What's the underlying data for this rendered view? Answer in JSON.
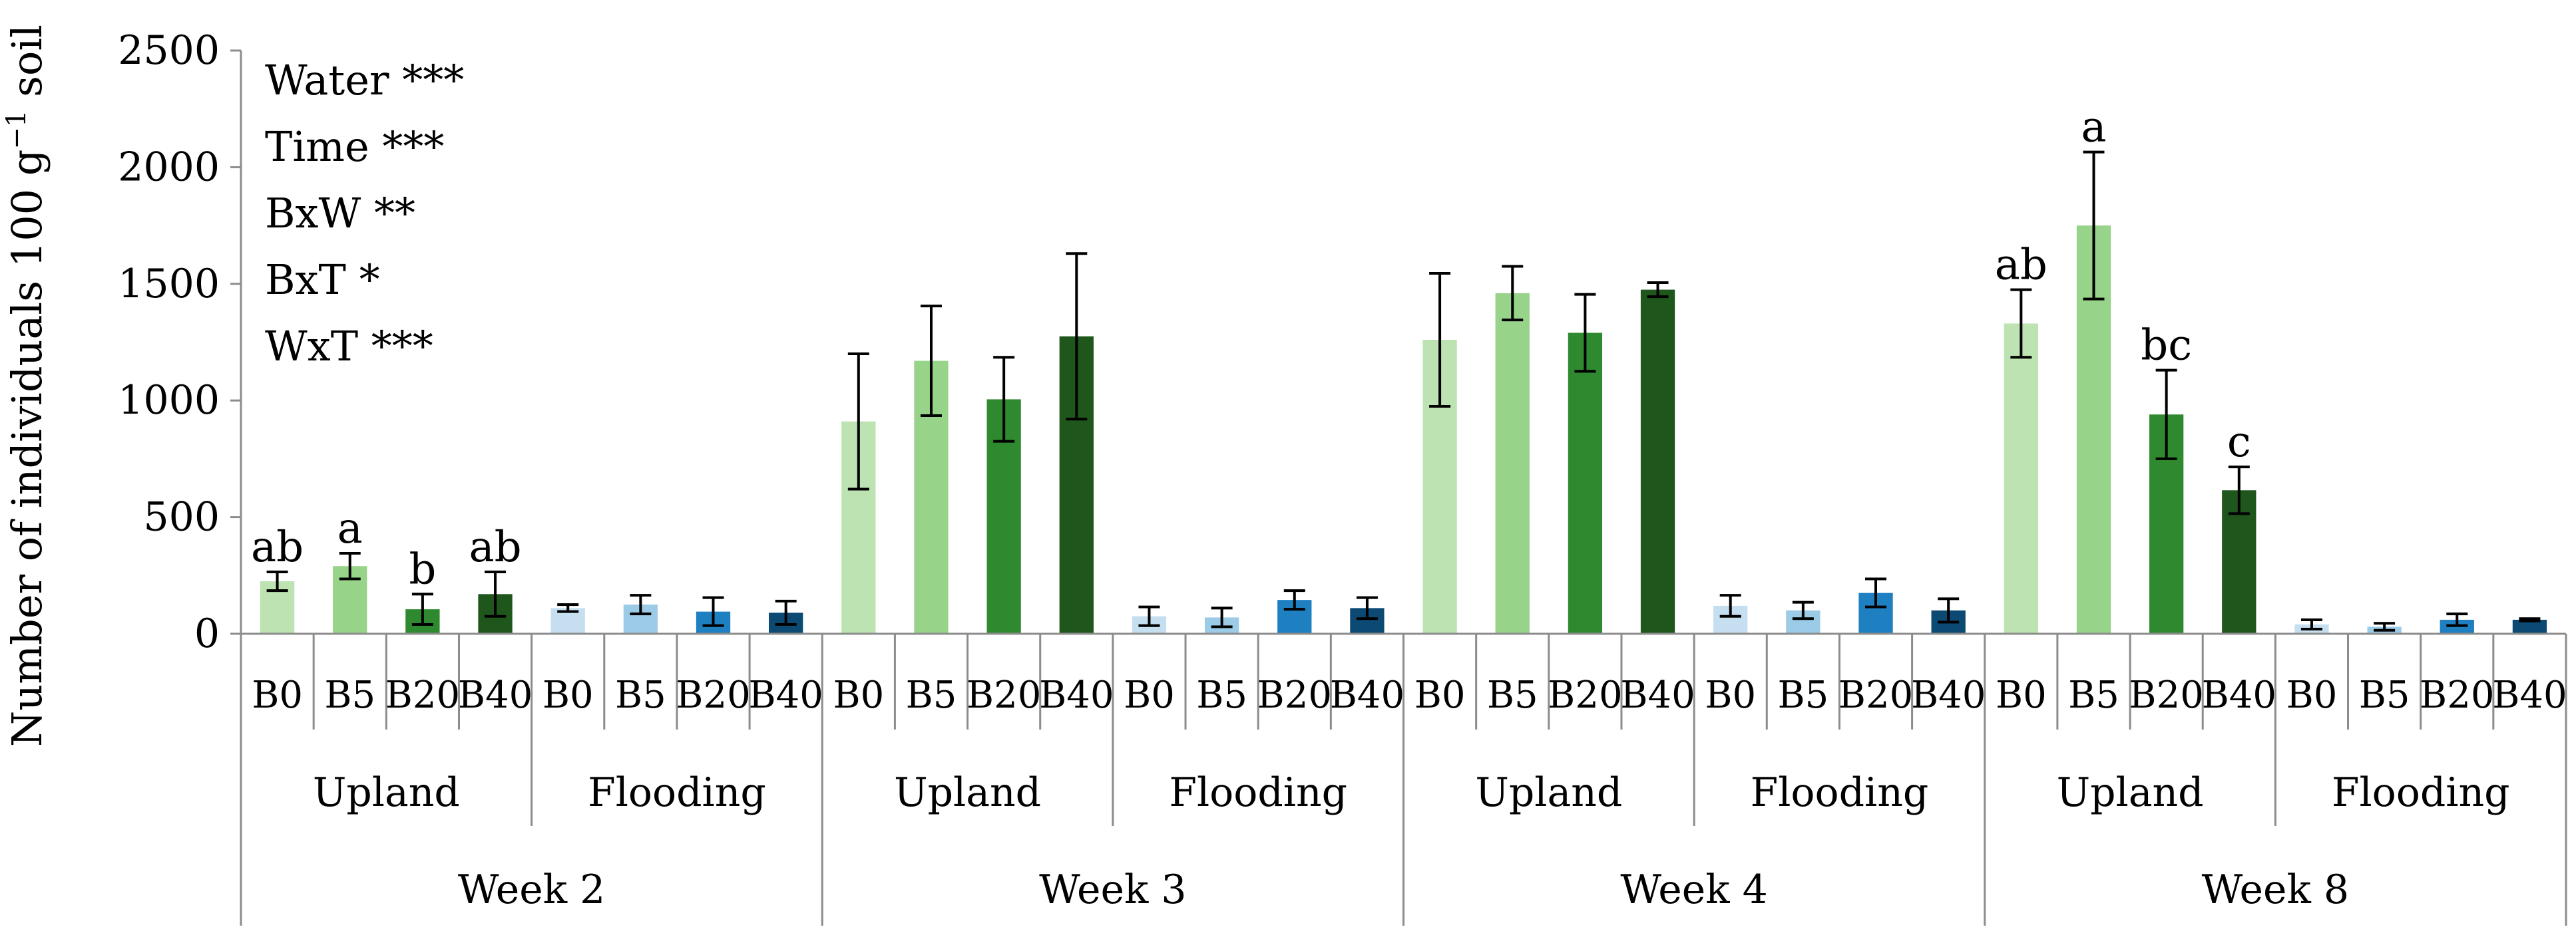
{
  "chart_data": {
    "type": "bar",
    "ylabel": "Number of individuals 100 g",
    "ylabel_sup": "−1",
    "ylabel_tail": " soil",
    "ylim": [
      0,
      2500
    ],
    "yticks": [
      "0",
      "500",
      "1000",
      "1500",
      "2000",
      "2500"
    ],
    "annotations": [
      "Water ***",
      "Time ***",
      "BxW **",
      "BxT *",
      "WxT ***"
    ],
    "categories_level1": [
      "B0",
      "B5",
      "B20",
      "B40"
    ],
    "colors": {
      "upland": [
        "#bce3b1",
        "#98d38a",
        "#2f8a2f",
        "#1e561c"
      ],
      "flooding": [
        "#c5dff0",
        "#9ccbe8",
        "#1e7fc1",
        "#0c4a73"
      ],
      "errorbar": "#000000",
      "axis": "#8c8c8c"
    },
    "weeks": [
      {
        "label": "Week 2",
        "groups": [
          {
            "label": "Upland",
            "kind": "upland",
            "values": [
              225,
              290,
              105,
              170
            ],
            "errors": [
              40,
              55,
              65,
              95
            ],
            "letters": [
              "ab",
              "a",
              "b",
              "ab"
            ]
          },
          {
            "label": "Flooding",
            "kind": "flooding",
            "values": [
              110,
              125,
              95,
              90
            ],
            "errors": [
              15,
              40,
              60,
              50
            ],
            "letters": [
              "",
              "",
              "",
              ""
            ]
          }
        ]
      },
      {
        "label": "Week 3",
        "groups": [
          {
            "label": "Upland",
            "kind": "upland",
            "values": [
              910,
              1170,
              1005,
              1275
            ],
            "errors": [
              290,
              235,
              180,
              355
            ],
            "letters": [
              "",
              "",
              "",
              ""
            ]
          },
          {
            "label": "Flooding",
            "kind": "flooding",
            "values": [
              75,
              70,
              145,
              110
            ],
            "errors": [
              40,
              40,
              40,
              45
            ],
            "letters": [
              "",
              "",
              "",
              ""
            ]
          }
        ]
      },
      {
        "label": "Week 4",
        "groups": [
          {
            "label": "Upland",
            "kind": "upland",
            "values": [
              1260,
              1460,
              1290,
              1475
            ],
            "errors": [
              285,
              115,
              165,
              30
            ],
            "letters": [
              "",
              "",
              "",
              ""
            ]
          },
          {
            "label": "Flooding",
            "kind": "flooding",
            "values": [
              120,
              100,
              175,
              100
            ],
            "errors": [
              45,
              35,
              60,
              50
            ],
            "letters": [
              "",
              "",
              "",
              ""
            ]
          }
        ]
      },
      {
        "label": "Week 8",
        "groups": [
          {
            "label": "Upland",
            "kind": "upland",
            "values": [
              1330,
              1750,
              940,
              615
            ],
            "errors": [
              145,
              315,
              190,
              100
            ],
            "letters": [
              "ab",
              "a",
              "bc",
              "c"
            ]
          },
          {
            "label": "Flooding",
            "kind": "flooding",
            "values": [
              40,
              30,
              60,
              60
            ],
            "errors": [
              20,
              15,
              25,
              5
            ],
            "letters": [
              "",
              "",
              "",
              ""
            ]
          }
        ]
      }
    ]
  }
}
